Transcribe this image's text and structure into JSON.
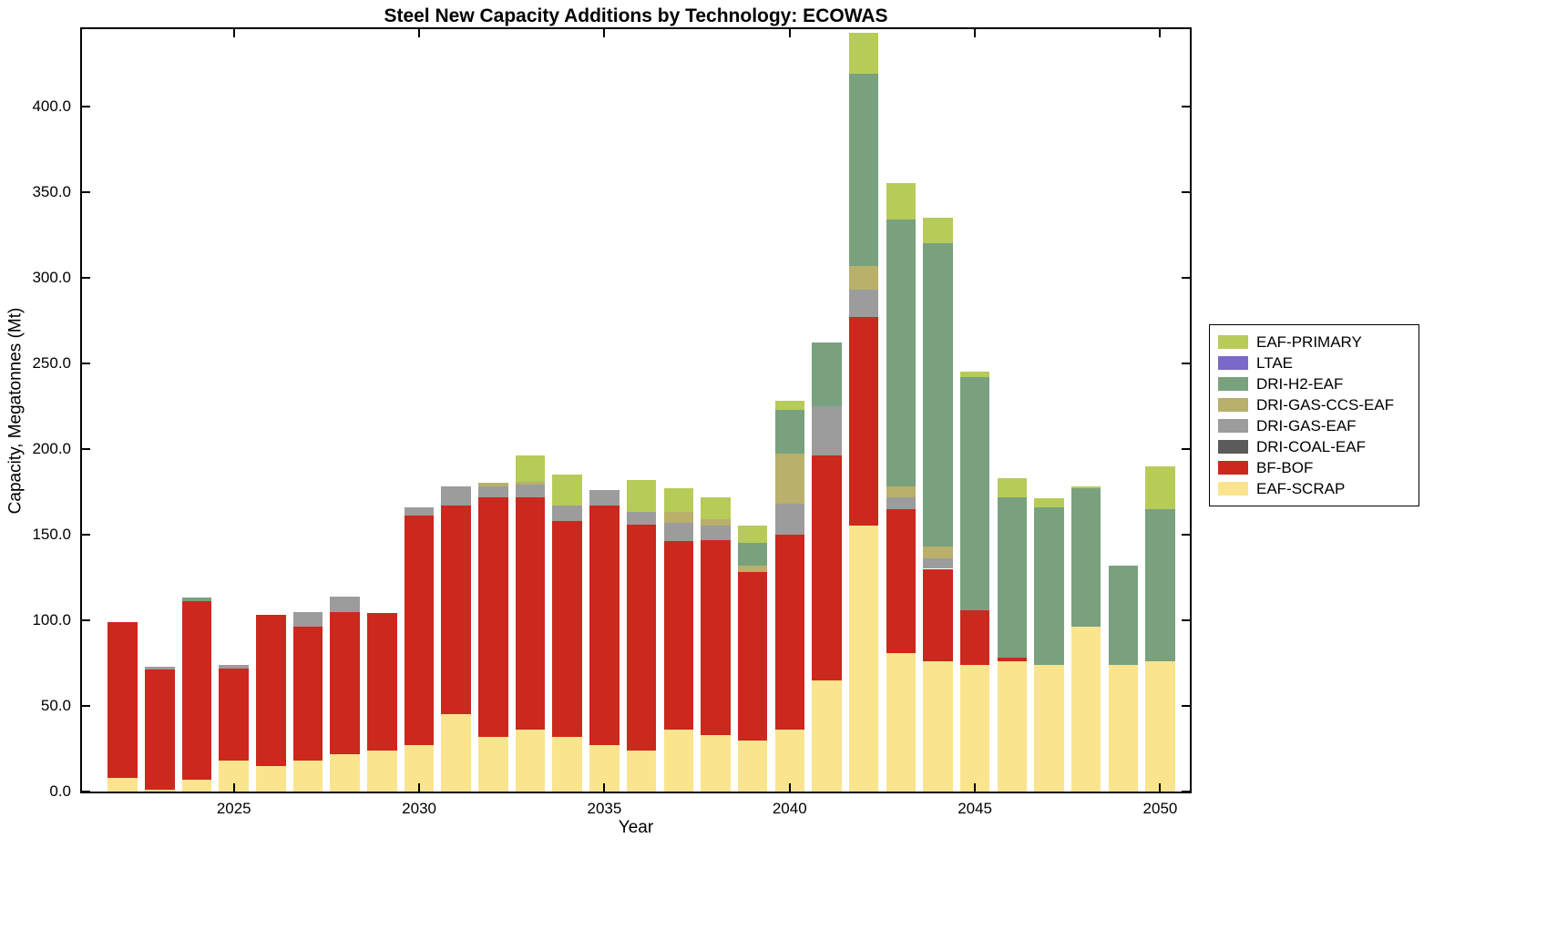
{
  "chart_data": {
    "type": "bar",
    "stacked": true,
    "title": "Steel New Capacity Additions by Technology: ECOWAS",
    "xlabel": "Year",
    "ylabel": "Capacity, Megatonnes (Mt)",
    "xlim": [
      2020.9,
      2050.8
    ],
    "ylim": [
      0,
      445
    ],
    "x_ticks": [
      2025,
      2030,
      2035,
      2040,
      2045,
      2050
    ],
    "y_ticks": [
      0,
      50,
      100,
      150,
      200,
      250,
      300,
      350,
      400
    ],
    "y_tick_decimals": 1,
    "bar_width_years": 0.8,
    "grid": false,
    "legend_position": "right-outside",
    "years": [
      2022,
      2023,
      2024,
      2025,
      2026,
      2027,
      2028,
      2029,
      2030,
      2031,
      2032,
      2033,
      2034,
      2035,
      2036,
      2037,
      2038,
      2039,
      2040,
      2041,
      2042,
      2043,
      2044,
      2045,
      2046,
      2047,
      2048,
      2049,
      2050
    ],
    "series": [
      {
        "name": "EAF-SCRAP",
        "color": "#FAE48E",
        "values": [
          8,
          1,
          7,
          18,
          15,
          18,
          22,
          24,
          27,
          45,
          32,
          36,
          32,
          27,
          24,
          36,
          33,
          30,
          36,
          65,
          155,
          81,
          76,
          74,
          76,
          74,
          96,
          74,
          76
        ]
      },
      {
        "name": "BF-BOF",
        "color": "#CB281E",
        "values": [
          91,
          70,
          104,
          54,
          88,
          78,
          83,
          80,
          134,
          122,
          140,
          136,
          126,
          140,
          132,
          110,
          114,
          98,
          114,
          131,
          122,
          84,
          54,
          32,
          2,
          0,
          0,
          0,
          0
        ]
      },
      {
        "name": "DRI-COAL-EAF",
        "color": "#5B5B5B",
        "values": [
          0,
          0,
          0,
          0,
          0,
          0,
          0,
          0,
          0,
          0,
          0,
          0,
          0,
          0,
          0,
          0,
          0,
          0,
          0,
          0,
          0,
          0,
          0,
          0,
          0,
          0,
          0,
          0,
          0
        ]
      },
      {
        "name": "DRI-GAS-EAF",
        "color": "#9C9C9C",
        "values": [
          0,
          2,
          0,
          2,
          0,
          9,
          9,
          0,
          5,
          11,
          6,
          7,
          9,
          9,
          7,
          11,
          8,
          0,
          18,
          29,
          16,
          7,
          6,
          0,
          0,
          0,
          0,
          0,
          0
        ]
      },
      {
        "name": "DRI-GAS-CCS-EAF",
        "color": "#B8B06B",
        "values": [
          0,
          0,
          0,
          0,
          0,
          0,
          0,
          0,
          0,
          0,
          2,
          2,
          0,
          0,
          0,
          6,
          4,
          4,
          29,
          0,
          14,
          6,
          7,
          0,
          0,
          0,
          0,
          0,
          0
        ]
      },
      {
        "name": "DRI-H2-EAF",
        "color": "#79A17E",
        "values": [
          0,
          0,
          2,
          0,
          0,
          0,
          0,
          0,
          0,
          0,
          0,
          0,
          0,
          0,
          0,
          0,
          0,
          13,
          26,
          37,
          112,
          156,
          177,
          136,
          94,
          92,
          81,
          58,
          89
        ]
      },
      {
        "name": "LTAE",
        "color": "#7C68C8",
        "values": [
          0,
          0,
          0,
          0,
          0,
          0,
          0,
          0,
          0,
          0,
          0,
          0,
          0,
          0,
          0,
          0,
          0,
          0,
          0,
          0,
          0,
          0,
          0,
          0,
          0,
          0,
          0,
          0,
          0
        ]
      },
      {
        "name": "EAF-PRIMARY",
        "color": "#B7CB58",
        "values": [
          0,
          0,
          0,
          0,
          0,
          0,
          0,
          0,
          0,
          0,
          0,
          15,
          18,
          0,
          19,
          14,
          13,
          10,
          5,
          0,
          24,
          21,
          15,
          3,
          11,
          5,
          1,
          0,
          25
        ]
      }
    ],
    "legend_order_top_to_bottom": [
      "EAF-PRIMARY",
      "LTAE",
      "DRI-H2-EAF",
      "DRI-GAS-CCS-EAF",
      "DRI-GAS-EAF",
      "DRI-COAL-EAF",
      "BF-BOF",
      "EAF-SCRAP"
    ]
  }
}
